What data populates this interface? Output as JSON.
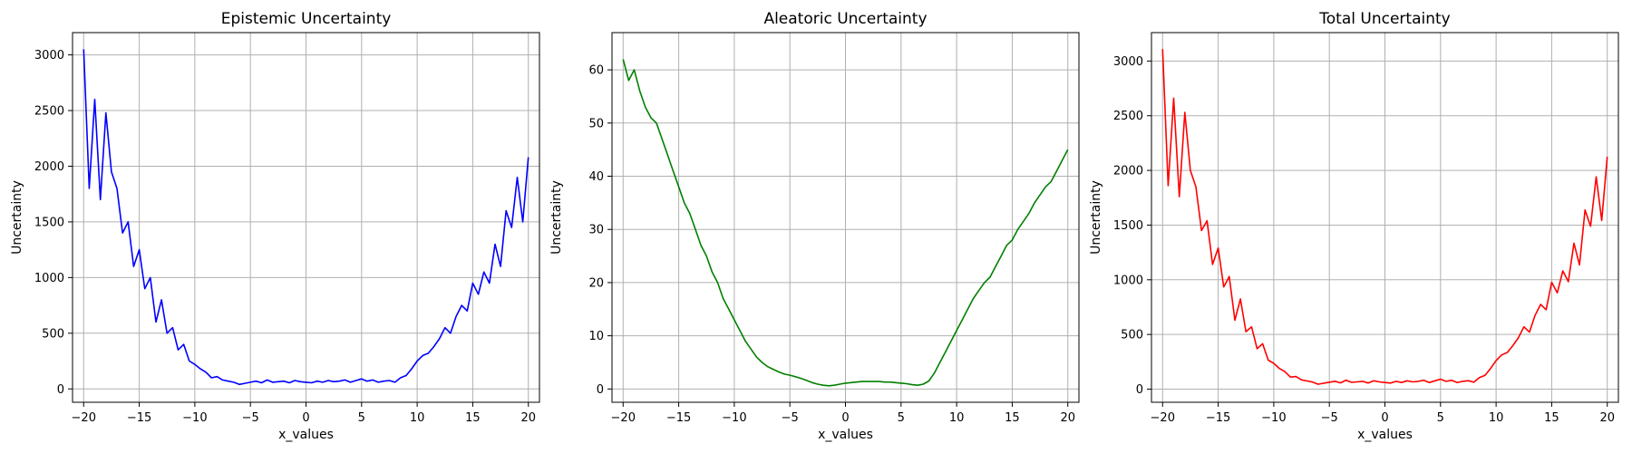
{
  "chart_data": [
    {
      "type": "line",
      "title": "Epistemic Uncertainty",
      "xlabel": "x_values",
      "ylabel": "Uncertainty",
      "xlim": [
        -21,
        21
      ],
      "ylim": [
        -120,
        3200
      ],
      "xticks": [
        -20,
        -15,
        -10,
        -5,
        0,
        5,
        10,
        15,
        20
      ],
      "yticks": [
        0,
        500,
        1000,
        1500,
        2000,
        2500,
        3000
      ],
      "grid": true,
      "series": [
        {
          "color": "#0000ff",
          "x": [
            -20,
            -19.5,
            -19,
            -18.5,
            -18,
            -17.5,
            -17,
            -16.5,
            -16,
            -15.5,
            -15,
            -14.5,
            -14,
            -13.5,
            -13,
            -12.5,
            -12,
            -11.5,
            -11,
            -10.5,
            -10,
            -9.5,
            -9,
            -8.5,
            -8,
            -7.5,
            -7,
            -6.5,
            -6,
            -5.5,
            -5,
            -4.5,
            -4,
            -3.5,
            -3,
            -2.5,
            -2,
            -1.5,
            -1,
            -0.5,
            0,
            0.5,
            1,
            1.5,
            2,
            2.5,
            3,
            3.5,
            4,
            4.5,
            5,
            5.5,
            6,
            6.5,
            7,
            7.5,
            8,
            8.5,
            9,
            9.5,
            10,
            10.5,
            11,
            11.5,
            12,
            12.5,
            13,
            13.5,
            14,
            14.5,
            15,
            15.5,
            16,
            16.5,
            17,
            17.5,
            18,
            18.5,
            19,
            19.5,
            20
          ],
          "y": [
            3050,
            1800,
            2600,
            1700,
            2480,
            1950,
            1800,
            1400,
            1500,
            1100,
            1250,
            900,
            1000,
            600,
            800,
            500,
            550,
            350,
            400,
            250,
            220,
            180,
            150,
            100,
            110,
            80,
            70,
            60,
            40,
            50,
            60,
            70,
            55,
            80,
            60,
            65,
            70,
            55,
            75,
            65,
            60,
            55,
            70,
            60,
            75,
            65,
            70,
            80,
            60,
            75,
            90,
            70,
            80,
            60,
            70,
            75,
            60,
            100,
            120,
            180,
            250,
            300,
            320,
            380,
            450,
            550,
            500,
            650,
            750,
            700,
            950,
            850,
            1050,
            950,
            1300,
            1100,
            1600,
            1450,
            1900,
            1500,
            2080
          ]
        }
      ]
    },
    {
      "type": "line",
      "title": "Aleatoric Uncertainty",
      "xlabel": "x_values",
      "ylabel": "Uncertainty",
      "xlim": [
        -21,
        21
      ],
      "ylim": [
        -2.5,
        67
      ],
      "xticks": [
        -20,
        -15,
        -10,
        -5,
        0,
        5,
        10,
        15,
        20
      ],
      "yticks": [
        0,
        10,
        20,
        30,
        40,
        50,
        60
      ],
      "grid": true,
      "series": [
        {
          "color": "#008000",
          "x": [
            -20,
            -19.5,
            -19,
            -18.5,
            -18,
            -17.5,
            -17,
            -16.5,
            -16,
            -15.5,
            -15,
            -14.5,
            -14,
            -13.5,
            -13,
            -12.5,
            -12,
            -11.5,
            -11,
            -10.5,
            -10,
            -9.5,
            -9,
            -8.5,
            -8,
            -7.5,
            -7,
            -6.5,
            -6,
            -5.5,
            -5,
            -4.5,
            -4,
            -3.5,
            -3,
            -2.5,
            -2,
            -1.5,
            -1,
            -0.5,
            0,
            0.5,
            1,
            1.5,
            2,
            2.5,
            3,
            3.5,
            4,
            4.5,
            5,
            5.5,
            6,
            6.5,
            7,
            7.5,
            8,
            8.5,
            9,
            9.5,
            10,
            10.5,
            11,
            11.5,
            12,
            12.5,
            13,
            13.5,
            14,
            14.5,
            15,
            15.5,
            16,
            16.5,
            17,
            17.5,
            18,
            18.5,
            19,
            19.5,
            20
          ],
          "y": [
            62,
            58,
            60,
            56,
            53,
            51,
            50,
            47,
            44,
            41,
            38,
            35,
            33,
            30,
            27,
            25,
            22,
            20,
            17,
            15,
            13,
            11,
            9,
            7.5,
            6,
            5,
            4.2,
            3.7,
            3.2,
            2.8,
            2.6,
            2.3,
            2.0,
            1.6,
            1.2,
            0.9,
            0.7,
            0.6,
            0.7,
            0.9,
            1.1,
            1.2,
            1.3,
            1.4,
            1.4,
            1.4,
            1.4,
            1.3,
            1.3,
            1.2,
            1.1,
            1.0,
            0.8,
            0.7,
            0.9,
            1.5,
            3,
            5,
            7,
            9,
            11,
            13,
            15,
            17,
            18.5,
            20,
            21,
            23,
            25,
            27,
            28,
            30,
            31.5,
            33,
            35,
            36.5,
            38,
            39,
            41,
            43,
            45
          ]
        }
      ]
    },
    {
      "type": "line",
      "title": "Total Uncertainty",
      "xlabel": "x_values",
      "ylabel": "Uncertainty",
      "xlim": [
        -21,
        21
      ],
      "ylim": [
        -120,
        3260
      ],
      "xticks": [
        -20,
        -15,
        -10,
        -5,
        0,
        5,
        10,
        15,
        20
      ],
      "yticks": [
        0,
        500,
        1000,
        1500,
        2000,
        2500,
        3000
      ],
      "grid": true,
      "series": [
        {
          "color": "#ff0000",
          "x": [
            -20,
            -19.5,
            -19,
            -18.5,
            -18,
            -17.5,
            -17,
            -16.5,
            -16,
            -15.5,
            -15,
            -14.5,
            -14,
            -13.5,
            -13,
            -12.5,
            -12,
            -11.5,
            -11,
            -10.5,
            -10,
            -9.5,
            -9,
            -8.5,
            -8,
            -7.5,
            -7,
            -6.5,
            -6,
            -5.5,
            -5,
            -4.5,
            -4,
            -3.5,
            -3,
            -2.5,
            -2,
            -1.5,
            -1,
            -0.5,
            0,
            0.5,
            1,
            1.5,
            2,
            2.5,
            3,
            3.5,
            4,
            4.5,
            5,
            5.5,
            6,
            6.5,
            7,
            7.5,
            8,
            8.5,
            9,
            9.5,
            10,
            10.5,
            11,
            11.5,
            12,
            12.5,
            13,
            13.5,
            14,
            14.5,
            15,
            15.5,
            16,
            16.5,
            17,
            17.5,
            18,
            18.5,
            19,
            19.5,
            20
          ],
          "y": [
            3110,
            1860,
            2660,
            1760,
            2530,
            2000,
            1850,
            1450,
            1540,
            1140,
            1290,
            935,
            1030,
            630,
            825,
            525,
            570,
            370,
            415,
            265,
            235,
            190,
            160,
            110,
            115,
            85,
            75,
            65,
            45,
            55,
            63,
            72,
            57,
            82,
            62,
            66,
            71,
            56,
            76,
            66,
            61,
            56,
            71,
            61,
            76,
            66,
            71,
            81,
            61,
            76,
            91,
            71,
            81,
            61,
            71,
            77,
            63,
            105,
            127,
            189,
            261,
            313,
            335,
            397,
            468,
            570,
            521,
            673,
            775,
            727,
            978,
            881,
            1081,
            983,
            1335,
            1136,
            1638,
            1489,
            1941,
            1543,
            2125
          ]
        }
      ]
    }
  ]
}
